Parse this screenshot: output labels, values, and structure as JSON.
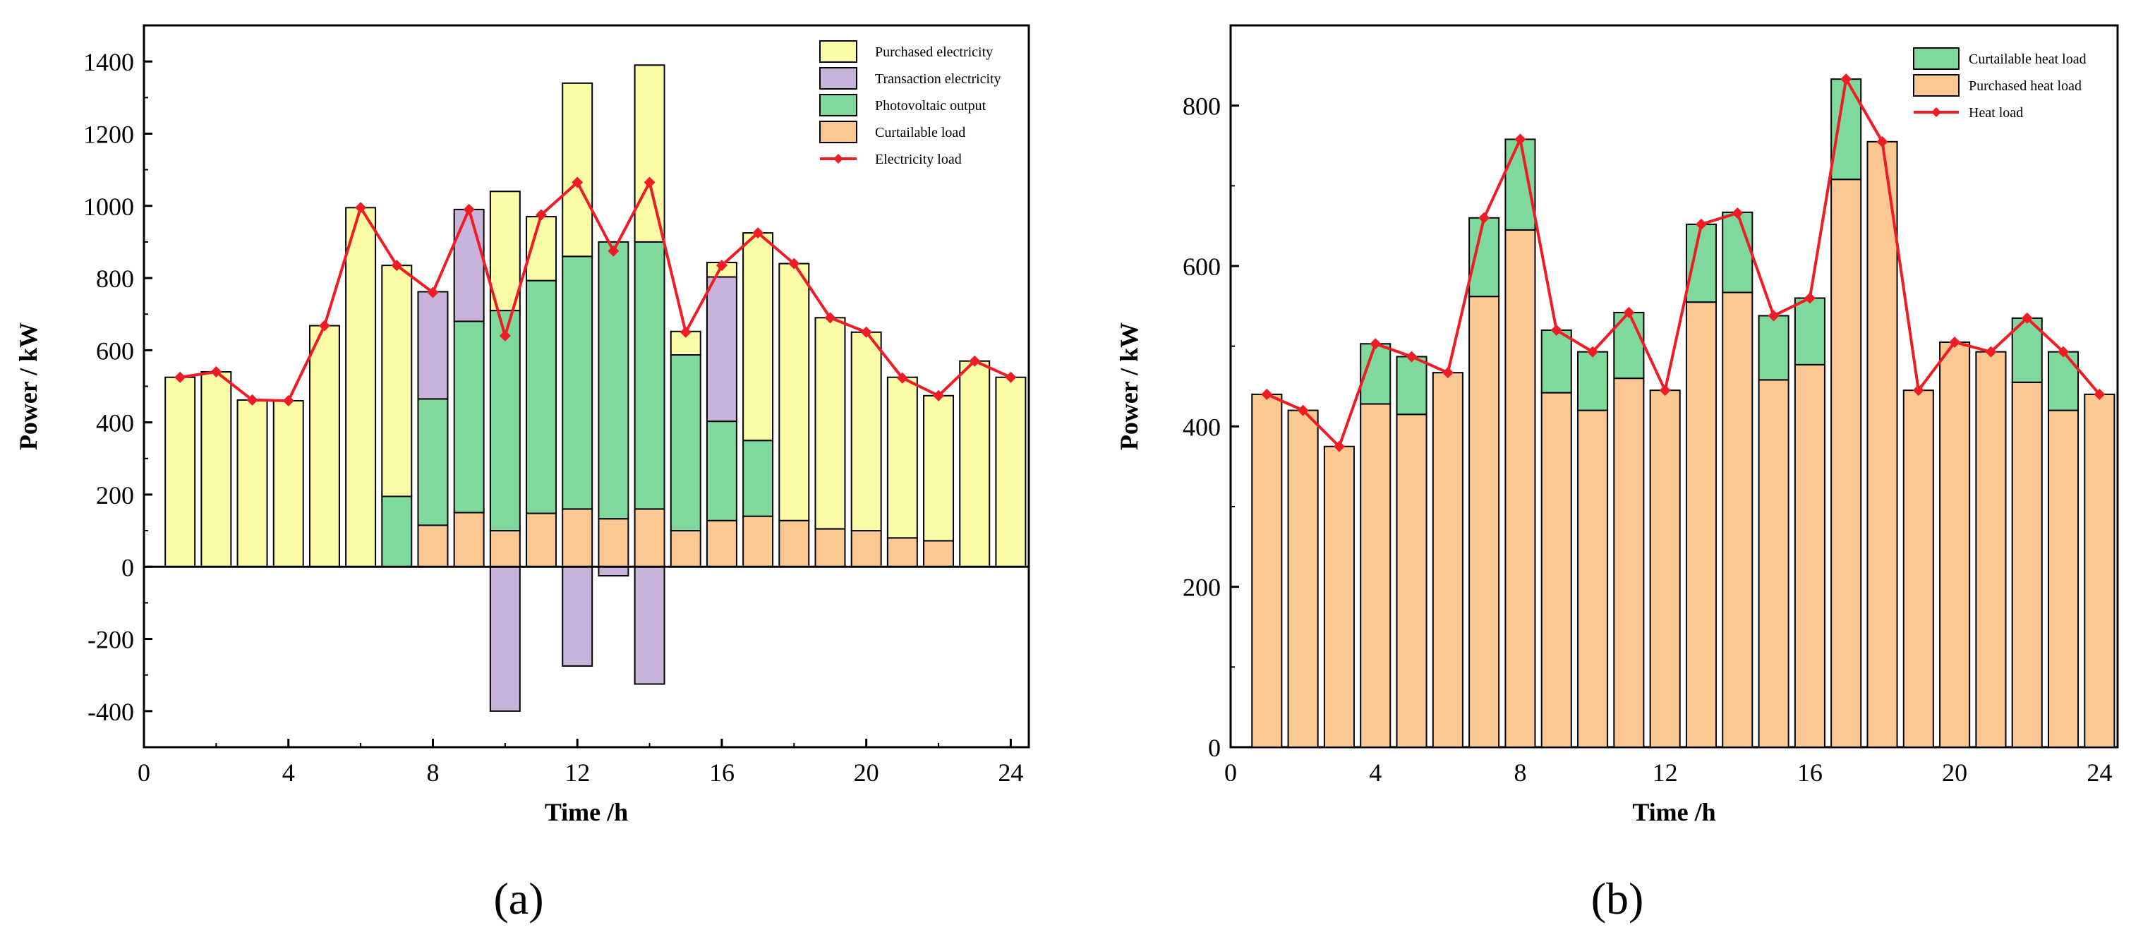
{
  "chart_data": [
    {
      "type": "bar",
      "stacked": true,
      "panel_label": "(a)",
      "title": "",
      "xlabel": "Time /h",
      "ylabel": "Power / kW",
      "xlim": [
        0,
        24.5
      ],
      "ylim": [
        -500,
        1500
      ],
      "xticks": [
        0,
        4,
        8,
        12,
        16,
        20,
        24
      ],
      "yticks": [
        -400,
        -200,
        0,
        200,
        400,
        600,
        800,
        1000,
        1200,
        1400
      ],
      "x": [
        1,
        2,
        3,
        4,
        5,
        6,
        7,
        8,
        9,
        10,
        11,
        12,
        13,
        14,
        15,
        16,
        17,
        18,
        19,
        20,
        21,
        22,
        23,
        24
      ],
      "series": [
        {
          "name": "Curtailable load",
          "color": "#FCC891",
          "values": [
            0,
            0,
            0,
            0,
            0,
            0,
            0,
            115,
            150,
            100,
            148,
            160,
            133,
            160,
            100,
            128,
            140,
            128,
            105,
            100,
            80,
            72,
            0,
            0
          ]
        },
        {
          "name": "Photovoltaic output",
          "color": "#7FD89C",
          "values": [
            0,
            0,
            0,
            0,
            0,
            0,
            195,
            350,
            530,
            610,
            645,
            700,
            767,
            740,
            487,
            275,
            210,
            0,
            0,
            0,
            0,
            0,
            0,
            0
          ]
        },
        {
          "name": "Transaction electricity",
          "color": "#C8B4DA",
          "values": [
            0,
            0,
            0,
            0,
            0,
            0,
            0,
            297,
            310,
            -400,
            0,
            -275,
            -25,
            -325,
            0,
            400,
            0,
            0,
            0,
            0,
            0,
            0,
            0,
            0
          ]
        },
        {
          "name": "Purchased electricity",
          "color": "#FCFBA6",
          "values": [
            525,
            540,
            462,
            460,
            668,
            995,
            640,
            0,
            0,
            330,
            177,
            480,
            0,
            490,
            65,
            40,
            575,
            712,
            585,
            550,
            445,
            402,
            570,
            525
          ]
        }
      ],
      "line": {
        "name": "Electricity load",
        "color": "#EE1C25",
        "values": [
          525,
          540,
          462,
          460,
          668,
          995,
          835,
          760,
          990,
          640,
          975,
          1065,
          875,
          1065,
          650,
          835,
          925,
          840,
          690,
          650,
          523,
          474,
          570,
          525
        ]
      },
      "legend": [
        "Purchased electricity",
        "Transaction electricity",
        "Photovoltaic output",
        "Curtailable load",
        "Electricity load"
      ],
      "legend_position": "top-right"
    },
    {
      "type": "bar",
      "stacked": true,
      "panel_label": "(b)",
      "title": "",
      "xlabel": "Time /h",
      "ylabel": "Power / kW",
      "xlim": [
        0,
        24.5
      ],
      "ylim": [
        0,
        900
      ],
      "xticks": [
        0,
        4,
        8,
        12,
        16,
        20,
        24
      ],
      "yticks": [
        0,
        200,
        400,
        600,
        800
      ],
      "x": [
        1,
        2,
        3,
        4,
        5,
        6,
        7,
        8,
        9,
        10,
        11,
        12,
        13,
        14,
        15,
        16,
        17,
        18,
        19,
        20,
        21,
        22,
        23,
        24
      ],
      "series": [
        {
          "name": "Purchased heat load",
          "color": "#FCC891",
          "values": [
            440,
            420,
            375,
            428,
            415,
            467,
            562,
            645,
            442,
            420,
            460,
            445,
            555,
            567,
            458,
            477,
            708,
            755,
            445,
            505,
            493,
            455,
            420,
            440
          ]
        },
        {
          "name": "Curtailable heat load",
          "color": "#7FD89C",
          "values": [
            0,
            0,
            0,
            75,
            72,
            0,
            98,
            113,
            78,
            73,
            82,
            0,
            97,
            100,
            80,
            83,
            125,
            0,
            0,
            0,
            0,
            80,
            73,
            0
          ]
        }
      ],
      "line": {
        "name": "Heat load",
        "color": "#EE1C25",
        "values": [
          440,
          420,
          375,
          503,
          487,
          467,
          660,
          758,
          520,
          493,
          542,
          445,
          652,
          666,
          538,
          560,
          833,
          755,
          445,
          505,
          493,
          535,
          493,
          440
        ]
      },
      "legend": [
        "Curtailable heat load",
        "Purchased heat load",
        "Heat load"
      ],
      "legend_position": "top-right"
    }
  ]
}
